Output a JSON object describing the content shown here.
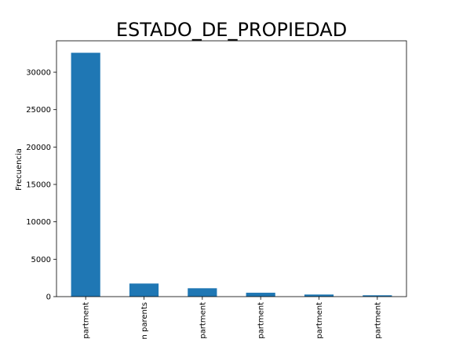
{
  "chart_data": {
    "type": "bar",
    "title": "ESTADO_DE_PROPIEDAD",
    "xlabel": "",
    "ylabel": "Frecuencia",
    "categories": [
      "partment",
      "n parents",
      "partment",
      "partment",
      "partment",
      "partment"
    ],
    "values": [
      32600,
      1750,
      1120,
      520,
      280,
      180
    ],
    "ylim": [
      0,
      34200
    ],
    "yticks": [
      0,
      5000,
      10000,
      15000,
      20000,
      25000,
      30000
    ],
    "yticks_labels": [
      "0",
      "5000",
      "10000",
      "15000",
      "20000",
      "25000",
      "30000"
    ],
    "bar_color": "#1f77b4",
    "grid": false,
    "legend": "none"
  }
}
